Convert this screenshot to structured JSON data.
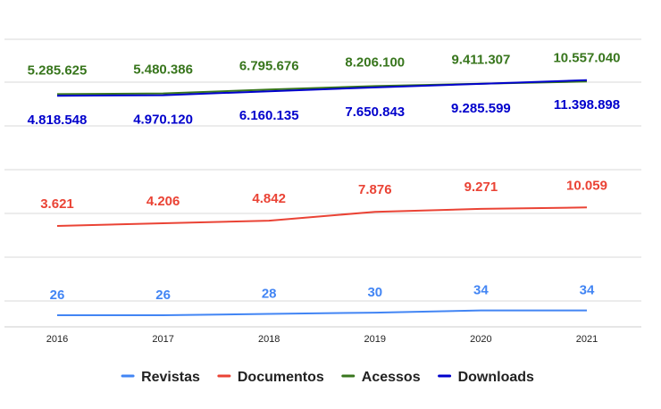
{
  "chart_data": {
    "type": "line",
    "x": [
      "2016",
      "2017",
      "2018",
      "2019",
      "2020",
      "2021"
    ],
    "series": [
      {
        "name": "Revistas",
        "color": "#4285f4",
        "values": [
          26,
          26,
          28,
          30,
          34,
          34
        ],
        "labels": [
          "26",
          "26",
          "28",
          "30",
          "34",
          "34"
        ]
      },
      {
        "name": "Documentos",
        "color": "#ea4335",
        "values": [
          3621,
          4206,
          4842,
          7876,
          9271,
          10059
        ],
        "labels": [
          "3.621",
          "4.206",
          "4.842",
          "7.876",
          "9.271",
          "10.059"
        ]
      },
      {
        "name": "Acessos",
        "color": "#38761d",
        "values": [
          5285625,
          5480386,
          6795676,
          8206100,
          9411307,
          10557040
        ],
        "labels": [
          "5.285.625",
          "5.480.386",
          "6.795.676",
          "8.206.100",
          "9.411.307",
          "10.557.040"
        ]
      },
      {
        "name": "Downloads",
        "color": "#0000cc",
        "values": [
          4818548,
          4970120,
          6160135,
          7650843,
          9285599,
          11398898
        ],
        "labels": [
          "4.818.548",
          "4.970.120",
          "6.160.135",
          "7.650.843",
          "9.285.599",
          "11.398.898"
        ]
      }
    ],
    "y_scale": "log",
    "grid": true,
    "legend_position": "bottom"
  }
}
